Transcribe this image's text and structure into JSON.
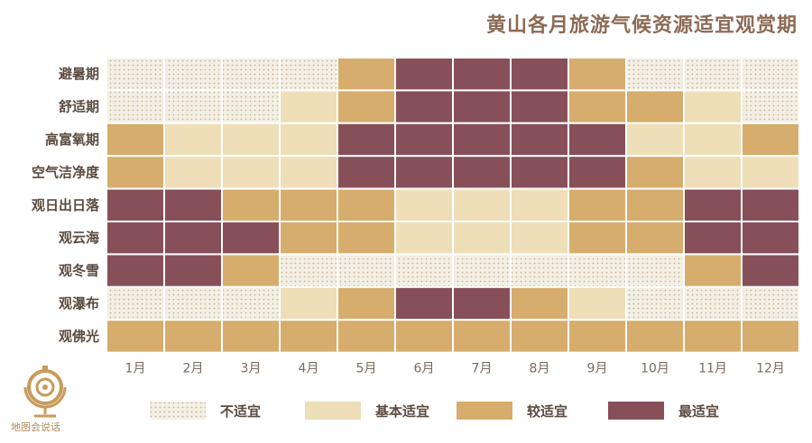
{
  "title": "黄山各月旅游气候资源适宜观赏期",
  "watermark_text": "地图会说话",
  "chart_data": {
    "type": "heatmap",
    "title": "黄山各月旅游气候资源适宜观赏期",
    "x": [
      "1月",
      "2月",
      "3月",
      "4月",
      "5月",
      "6月",
      "7月",
      "8月",
      "9月",
      "10月",
      "11月",
      "12月"
    ],
    "y": [
      "避暑期",
      "舒适期",
      "高富氧期",
      "空气洁净度",
      "观日出日落",
      "观云海",
      "观冬雪",
      "观瀑布",
      "观佛光"
    ],
    "levels": [
      "不适宜",
      "基本适宜",
      "较适宜",
      "最适宜"
    ],
    "colors": [
      "#f2ead7",
      "#eedfb9",
      "#d6ad6d",
      "#875059"
    ],
    "dot_color": "#c8b99c",
    "values": [
      [
        0,
        0,
        0,
        0,
        2,
        3,
        3,
        3,
        2,
        0,
        0,
        0
      ],
      [
        0,
        0,
        0,
        1,
        2,
        3,
        3,
        3,
        2,
        2,
        1,
        0
      ],
      [
        2,
        1,
        1,
        1,
        3,
        3,
        3,
        3,
        3,
        1,
        1,
        2
      ],
      [
        2,
        1,
        1,
        1,
        3,
        3,
        3,
        3,
        3,
        2,
        1,
        1
      ],
      [
        3,
        3,
        2,
        2,
        2,
        1,
        1,
        1,
        2,
        2,
        3,
        3
      ],
      [
        3,
        3,
        3,
        2,
        2,
        1,
        1,
        1,
        2,
        2,
        3,
        3
      ],
      [
        3,
        3,
        2,
        0,
        0,
        0,
        0,
        0,
        0,
        0,
        2,
        3
      ],
      [
        0,
        0,
        0,
        1,
        2,
        3,
        3,
        2,
        1,
        0,
        0,
        0
      ],
      [
        2,
        2,
        2,
        2,
        2,
        2,
        2,
        2,
        2,
        2,
        2,
        2
      ]
    ]
  }
}
